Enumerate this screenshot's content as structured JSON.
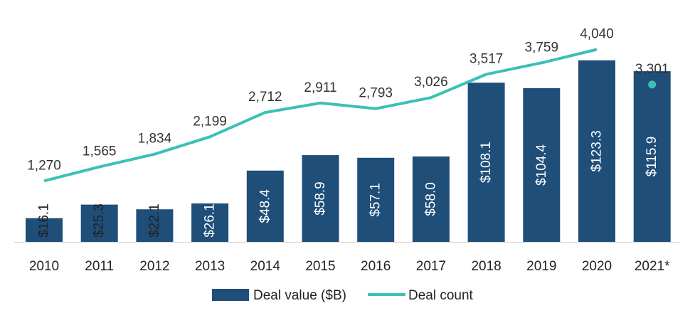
{
  "chart_data": {
    "type": "bar",
    "categories": [
      "2010",
      "2011",
      "2012",
      "2013",
      "2014",
      "2015",
      "2016",
      "2017",
      "2018",
      "2019",
      "2020",
      "2021*"
    ],
    "value_labels": [
      "$16.1",
      "$25.3",
      "$22.1",
      "$26.1",
      "$48.4",
      "$58.9",
      "$57.1",
      "$58.0",
      "$108.1",
      "$104.4",
      "$123.3",
      "$115.9"
    ],
    "count_labels": [
      "1,270",
      "1,565",
      "1,834",
      "2,199",
      "2,712",
      "2,911",
      "2,793",
      "3,026",
      "3,517",
      "3,759",
      "4,040",
      "3,301"
    ],
    "series": [
      {
        "name": "Deal value ($B)",
        "type": "bar",
        "values": [
          16.1,
          25.3,
          22.1,
          26.1,
          48.4,
          58.9,
          57.1,
          58.0,
          108.1,
          104.4,
          123.3,
          115.9
        ]
      },
      {
        "name": "Deal count",
        "type": "line",
        "values": [
          1270,
          1565,
          1834,
          2199,
          2712,
          2911,
          2793,
          3026,
          3517,
          3759,
          4040,
          3301
        ],
        "connected_through_index": 10,
        "unconnected_points": [
          11
        ]
      }
    ],
    "title": "",
    "xlabel": "",
    "ylabel": "",
    "grid": false,
    "legend_position": "bottom-center",
    "colors": {
      "bar": "#1f4e79",
      "line": "#3cc0b5",
      "bar_label_light": "#ffffff",
      "bar_label_dark": "#222222"
    }
  }
}
